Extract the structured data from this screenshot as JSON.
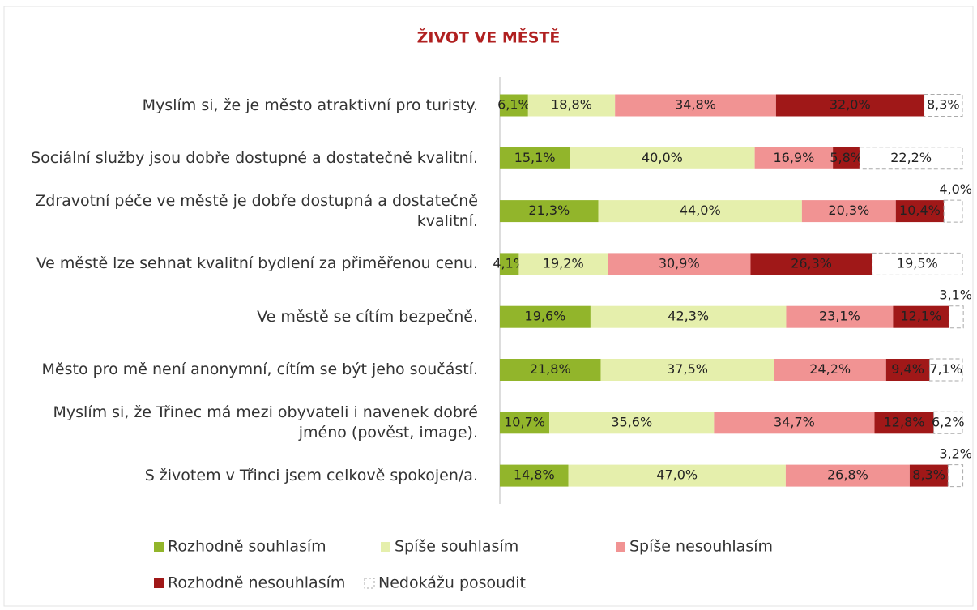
{
  "chart_data": {
    "type": "stacked_barh",
    "title": "ŽIVOT VE MĚSTĚ",
    "categories": [
      "Myslím si, že je město atraktivní pro turisty.",
      "Sociální služby jsou dobře dostupné a dostatečně kvalitní.",
      "Zdravotní péče ve městě je dobře dostupná a dostatečně kvalitní.",
      "Ve městě lze sehnat kvalitní bydlení za přiměřenou cenu.",
      "Ve městě se cítím bezpečně.",
      "Město pro mě není anonymní, cítím se být jeho součástí.",
      "Myslím si, že Třinec má mezi obyvateli i navenek dobré jméno (pověst, image).",
      "S životem v Třinci jsem celkově spokojen/a."
    ],
    "xlim": [
      0,
      100
    ],
    "series": [
      {
        "name": "Rozhodně souhlasím",
        "color": "#92b52b",
        "values": [
          6.1,
          15.1,
          21.3,
          4.1,
          19.6,
          21.8,
          10.7,
          14.8
        ],
        "value_labels": [
          "6,1%",
          "15,1%",
          "21,3%",
          "4,1%",
          "19,6%",
          "21,8%",
          "10,7%",
          "14,8%"
        ]
      },
      {
        "name": "Spíše souhlasím",
        "color": "#e5efac",
        "values": [
          18.8,
          40.0,
          44.0,
          19.2,
          42.3,
          37.5,
          35.6,
          47.0
        ],
        "value_labels": [
          "18,8%",
          "40,0%",
          "44,0%",
          "19,2%",
          "42,3%",
          "37,5%",
          "35,6%",
          "47,0%"
        ]
      },
      {
        "name": "Spíše nesouhlasím",
        "color": "#f19393",
        "values": [
          34.8,
          16.9,
          20.3,
          30.9,
          23.1,
          24.2,
          34.7,
          26.8
        ],
        "value_labels": [
          "34,8%",
          "16,9%",
          "20,3%",
          "30,9%",
          "23,1%",
          "24,2%",
          "34,7%",
          "26,8%"
        ]
      },
      {
        "name": "Rozhodně nesouhlasím",
        "color": "#a01818",
        "values": [
          32.0,
          5.8,
          10.4,
          26.3,
          12.1,
          9.4,
          12.8,
          8.3
        ],
        "value_labels": [
          "32,0%",
          "5,8%",
          "10,4%",
          "26,3%",
          "12,1%",
          "9,4%",
          "12,8%",
          "8,3%"
        ]
      },
      {
        "name": "Nedokážu posoudit",
        "color": "#ffffff",
        "values": [
          8.3,
          22.2,
          4.0,
          19.5,
          3.1,
          7.1,
          6.2,
          3.2
        ],
        "value_labels": [
          "8,3%",
          "22,2%",
          "4,0%",
          "19,5%",
          "3,1%",
          "7,1%",
          "6,2%",
          "3,2%"
        ]
      }
    ]
  }
}
